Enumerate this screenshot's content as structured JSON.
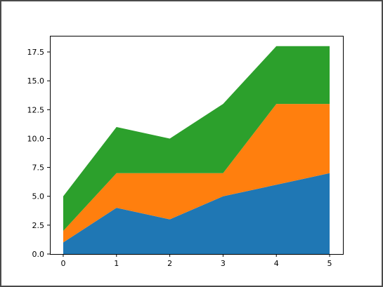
{
  "chart_data": {
    "type": "area",
    "stacked": true,
    "x": [
      0,
      1,
      2,
      3,
      4,
      5
    ],
    "series": [
      {
        "values": [
          1,
          4,
          3,
          5,
          6,
          7
        ],
        "color": "#1f77b4"
      },
      {
        "values": [
          1,
          3,
          4,
          2,
          7,
          6
        ],
        "color": "#ff7f0e"
      },
      {
        "values": [
          3,
          4,
          3,
          6,
          5,
          5
        ],
        "color": "#2ca02c"
      }
    ],
    "xlim": [
      -0.25,
      5.25
    ],
    "ylim": [
      0,
      18.9
    ],
    "xticks": [
      0,
      1,
      2,
      3,
      4,
      5
    ],
    "yticks": [
      0.0,
      2.5,
      5.0,
      7.5,
      10.0,
      12.5,
      15.0,
      17.5
    ],
    "xtick_labels": [
      "0",
      "1",
      "2",
      "3",
      "4",
      "5"
    ],
    "ytick_labels": [
      "0.0",
      "2.5",
      "5.0",
      "7.5",
      "10.0",
      "12.5",
      "15.0",
      "17.5"
    ],
    "grid": false,
    "title": "",
    "xlabel": "",
    "ylabel": ""
  }
}
